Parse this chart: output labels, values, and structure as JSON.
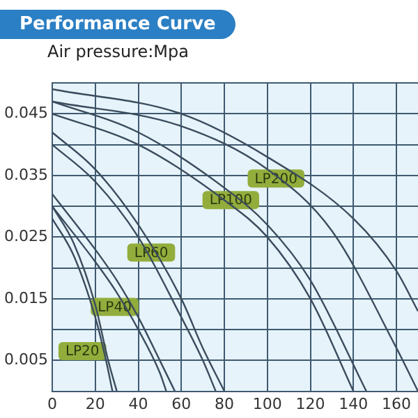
{
  "chart_data": {
    "type": "line",
    "title": "Performance Curve",
    "ylabel": "Air pressure:Mpa",
    "xlim": [
      0,
      170
    ],
    "ylim": [
      0,
      0.05
    ],
    "xticks": [
      0,
      20,
      40,
      60,
      80,
      100,
      120,
      140,
      160
    ],
    "yticks": [
      {
        "value": 0,
        "label": null
      },
      0.005,
      {
        "value": 0.01,
        "label": null
      },
      0.015,
      {
        "value": 0.02,
        "label": null
      },
      0.025,
      {
        "value": 0.03,
        "label": null
      },
      0.035,
      {
        "value": 0.04,
        "label": null
      },
      0.045,
      {
        "value": 0.05,
        "label": null
      }
    ],
    "grid": true,
    "legend": false,
    "marker": "none",
    "line_style": "solid",
    "series": [
      {
        "color": "#3b4c5e",
        "x": [
          0,
          10,
          20,
          25,
          28
        ],
        "values": [
          0.028,
          0.022,
          0.012,
          0.005,
          0
        ]
      },
      {
        "color": "#3b4c5e",
        "x": [
          0,
          10,
          20,
          26,
          30
        ],
        "values": [
          0.03,
          0.024,
          0.014,
          0.005,
          0
        ]
      },
      {
        "color": "#3b4c5e",
        "x": [
          0,
          20,
          30,
          40,
          50,
          53
        ],
        "values": [
          0.03,
          0.021,
          0.016,
          0.01,
          0.003,
          0
        ]
      },
      {
        "color": "#3b4c5e",
        "x": [
          0,
          20,
          30,
          40,
          50,
          57
        ],
        "values": [
          0.032,
          0.023,
          0.018,
          0.012,
          0.005,
          0
        ]
      },
      {
        "color": "#3b4c5e",
        "x": [
          0,
          20,
          40,
          60,
          70,
          76
        ],
        "values": [
          0.04,
          0.034,
          0.025,
          0.012,
          0.005,
          0
        ]
      },
      {
        "color": "#3b4c5e",
        "x": [
          0,
          20,
          40,
          60,
          70,
          80
        ],
        "values": [
          0.042,
          0.036,
          0.027,
          0.015,
          0.007,
          0
        ]
      },
      {
        "color": "#3b4c5e",
        "x": [
          0,
          40,
          80,
          100,
          120,
          140
        ],
        "values": [
          0.045,
          0.04,
          0.031,
          0.025,
          0.015,
          0
        ]
      },
      {
        "color": "#3b4c5e",
        "x": [
          0,
          40,
          80,
          100,
          120,
          146
        ],
        "values": [
          0.047,
          0.042,
          0.033,
          0.027,
          0.018,
          0
        ]
      },
      {
        "color": "#3b4c5e",
        "x": [
          0,
          60,
          100,
          130,
          160,
          170
        ],
        "values": [
          0.047,
          0.043,
          0.036,
          0.026,
          0.007,
          0
        ]
      },
      {
        "color": "#3b4c5e",
        "x": [
          0,
          60,
          100,
          140,
          160,
          170
        ],
        "values": [
          0.049,
          0.045,
          0.038,
          0.028,
          0.0195,
          0.013
        ]
      }
    ],
    "annotations": [
      {
        "text": "LP20",
        "x": 14,
        "y": 0.0065
      },
      {
        "text": "LP40",
        "x": 29,
        "y": 0.0137
      },
      {
        "text": "LP60",
        "x": 46,
        "y": 0.0225
      },
      {
        "text": "LP100",
        "x": 83,
        "y": 0.031
      },
      {
        "text": "LP200",
        "x": 104,
        "y": 0.0345
      }
    ]
  }
}
